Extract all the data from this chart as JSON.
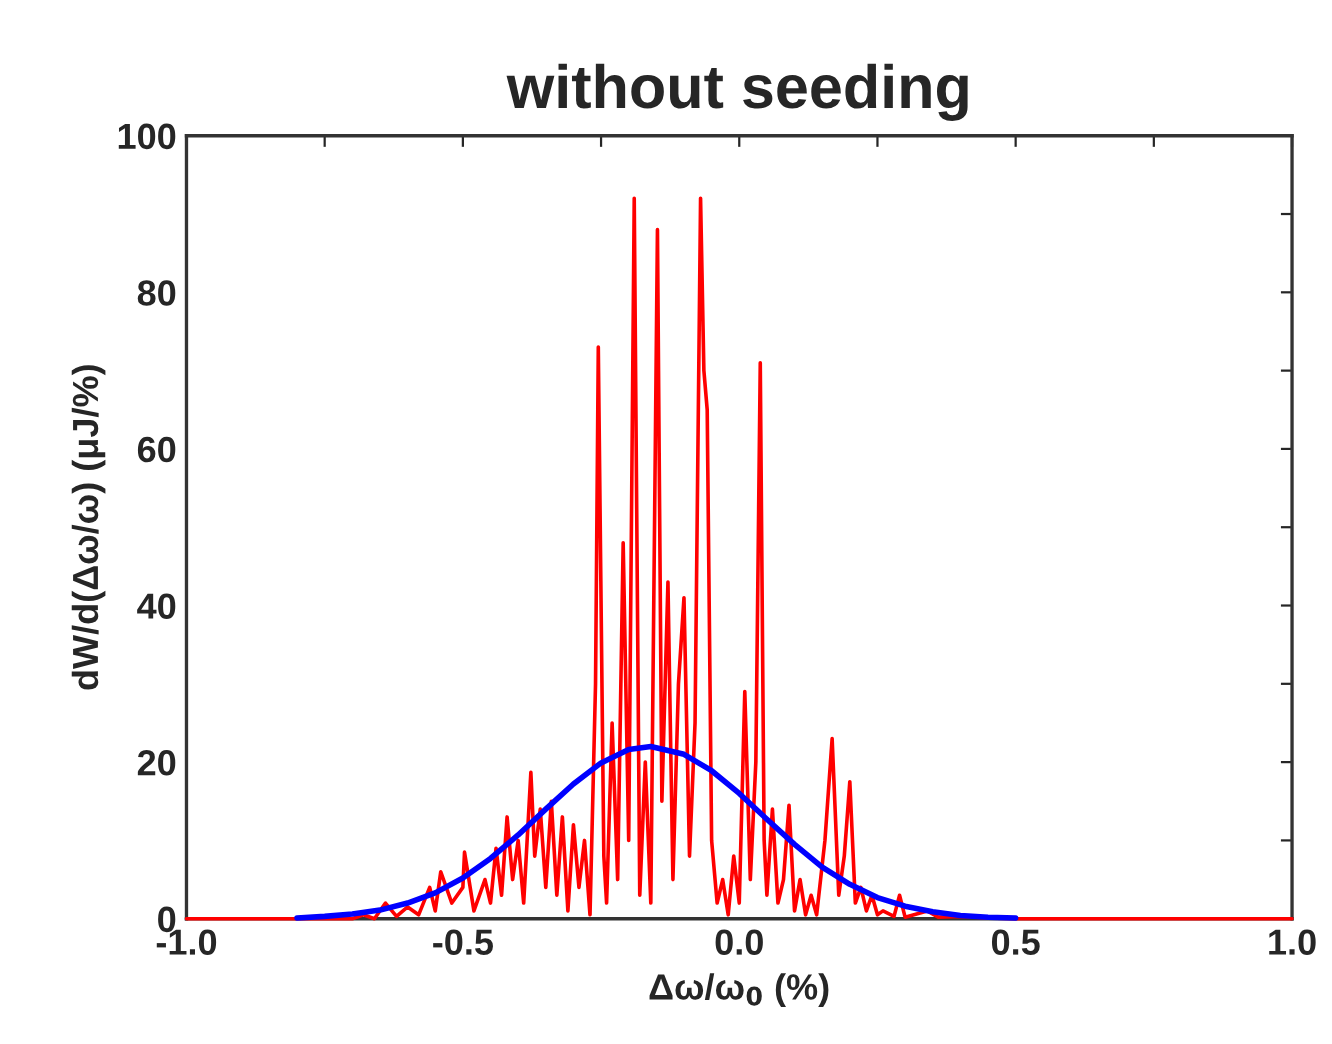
{
  "chart_data": {
    "type": "line",
    "title": "without seeding",
    "xlabel": "Δω/ω$_{0}$ (%)",
    "ylabel": "dW/d(Δω/ω) (μJ/%)",
    "xlim": [
      -1.0,
      1.0
    ],
    "ylim": [
      0,
      100
    ],
    "xticks": [
      {
        "value": -1.0,
        "label": "-1.0"
      },
      {
        "value": -0.75,
        "label": null
      },
      {
        "value": -0.5,
        "label": "-0.5"
      },
      {
        "value": -0.25,
        "label": null
      },
      {
        "value": 0.0,
        "label": "0.0"
      },
      {
        "value": 0.25,
        "label": null
      },
      {
        "value": 0.5,
        "label": "0.5"
      },
      {
        "value": 0.75,
        "label": null
      },
      {
        "value": 1.0,
        "label": "1.0"
      }
    ],
    "yticks": [
      0,
      {
        "value": 10,
        "label": null
      },
      20,
      {
        "value": 30,
        "label": null
      },
      40,
      {
        "value": 50,
        "label": null
      },
      60,
      {
        "value": 70,
        "label": null
      },
      80,
      {
        "value": 90,
        "label": null
      },
      100
    ],
    "grid": false,
    "marker": "none",
    "line_style": "solid",
    "series": [
      {
        "color": "#ff0000",
        "x": [
          -1.0,
          -0.7,
          -0.68,
          -0.66,
          -0.64,
          -0.62,
          -0.6,
          -0.58,
          -0.56,
          -0.55,
          -0.54,
          -0.52,
          -0.5,
          -0.497,
          -0.48,
          -0.46,
          -0.45,
          -0.44,
          -0.43,
          -0.42,
          -0.41,
          -0.4,
          -0.39,
          -0.377,
          -0.37,
          -0.36,
          -0.35,
          -0.34,
          -0.33,
          -0.32,
          -0.31,
          -0.3,
          -0.29,
          -0.28,
          -0.27,
          -0.26,
          -0.255,
          -0.245,
          -0.24,
          -0.23,
          -0.22,
          -0.21,
          -0.2,
          -0.19,
          -0.18,
          -0.17,
          -0.16,
          -0.148,
          -0.14,
          -0.129,
          -0.12,
          -0.11,
          -0.1,
          -0.09,
          -0.08,
          -0.07,
          -0.064,
          -0.058,
          -0.05,
          -0.04,
          -0.03,
          -0.02,
          -0.01,
          0.0,
          0.01,
          0.02,
          0.03,
          0.038,
          0.045,
          0.05,
          0.06,
          0.07,
          0.08,
          0.09,
          0.1,
          0.11,
          0.12,
          0.13,
          0.14,
          0.155,
          0.168,
          0.18,
          0.19,
          0.2,
          0.21,
          0.22,
          0.23,
          0.24,
          0.25,
          0.26,
          0.28,
          0.29,
          0.3,
          0.34,
          0.36,
          0.4,
          0.45,
          0.5,
          1.0
        ],
        "values": [
          0,
          0,
          0.5,
          0,
          2,
          0.3,
          1.5,
          0.5,
          4,
          1,
          6,
          2,
          4,
          8.5,
          1,
          5,
          2,
          9,
          3,
          13,
          5,
          10,
          2,
          18.7,
          8,
          14,
          4,
          15,
          3,
          13,
          1,
          12,
          4,
          10,
          0.5,
          30,
          73,
          8,
          2,
          25,
          5,
          48,
          10,
          92,
          3,
          20,
          2,
          88,
          15,
          43,
          5,
          30,
          41,
          8,
          25,
          92,
          70,
          65,
          10,
          2,
          5,
          0.5,
          8,
          2,
          29,
          5,
          20,
          71,
          10,
          3,
          14,
          2,
          5,
          14.5,
          1,
          5,
          0.5,
          3,
          0.5,
          10,
          23,
          3,
          8,
          17.5,
          2,
          4,
          1,
          3,
          0.5,
          1,
          0.3,
          3,
          0.2,
          1,
          0.2,
          0.3,
          0.1,
          0,
          0
        ]
      },
      {
        "color": "#0000ff",
        "x": [
          -0.8,
          -0.75,
          -0.7,
          -0.65,
          -0.6,
          -0.55,
          -0.5,
          -0.45,
          -0.4,
          -0.35,
          -0.3,
          -0.25,
          -0.2,
          -0.16,
          -0.1,
          -0.05,
          0.0,
          0.05,
          0.1,
          0.15,
          0.2,
          0.25,
          0.3,
          0.35,
          0.4,
          0.45,
          0.5
        ],
        "values": [
          0.1,
          0.3,
          0.6,
          1.1,
          2.0,
          3.3,
          5.2,
          7.7,
          10.7,
          14.0,
          17.2,
          19.9,
          21.6,
          22.0,
          21.0,
          18.9,
          16.0,
          12.7,
          9.5,
          6.6,
          4.4,
          2.7,
          1.6,
          0.9,
          0.4,
          0.2,
          0.1
        ]
      }
    ]
  }
}
